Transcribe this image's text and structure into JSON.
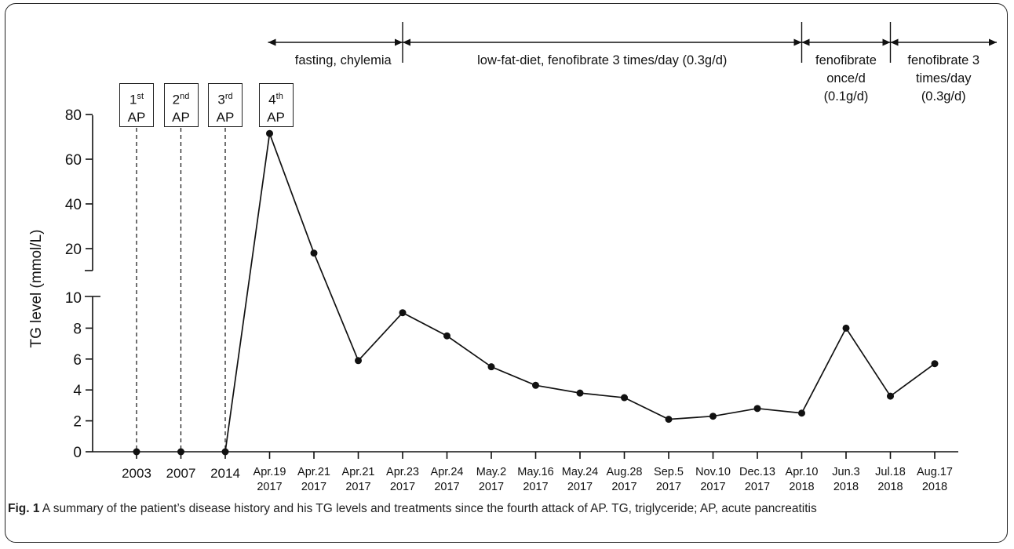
{
  "chart_data": {
    "type": "line",
    "ylabel": "TG level (mmol/L)",
    "y_ticks_lower": [
      0,
      2,
      4,
      6,
      8,
      10
    ],
    "y_ticks_upper": [
      20,
      40,
      60,
      80
    ],
    "axis_break": "between 10 and 20",
    "categories": [
      [
        "2003",
        ""
      ],
      [
        "2007",
        ""
      ],
      [
        "2014",
        ""
      ],
      [
        "Apr.19",
        "2017"
      ],
      [
        "Apr.21",
        "2017"
      ],
      [
        "Apr.21",
        "2017"
      ],
      [
        "Apr.23",
        "2017"
      ],
      [
        "Apr.24",
        "2017"
      ],
      [
        "May.2",
        "2017"
      ],
      [
        "May.16",
        "2017"
      ],
      [
        "May.24",
        "2017"
      ],
      [
        "Aug.28",
        "2017"
      ],
      [
        "Sep.5",
        "2017"
      ],
      [
        "Nov.10",
        "2017"
      ],
      [
        "Dec.13",
        "2017"
      ],
      [
        "Apr.10",
        "2018"
      ],
      [
        "Jun.3",
        "2018"
      ],
      [
        "Jul.18",
        "2018"
      ],
      [
        "Aug.17",
        "2018"
      ]
    ],
    "values": [
      0,
      0,
      0,
      71.5,
      18,
      5.9,
      9.0,
      7.5,
      5.5,
      4.3,
      3.8,
      3.5,
      2.1,
      2.3,
      2.8,
      2.5,
      8.0,
      3.6,
      5.7
    ],
    "attacks": [
      {
        "sup": "st",
        "num": "1",
        "label": "AP"
      },
      {
        "sup": "nd",
        "num": "2",
        "label": "AP"
      },
      {
        "sup": "rd",
        "num": "3",
        "label": "AP"
      },
      {
        "sup": "th",
        "num": "4",
        "label": "AP"
      }
    ],
    "treatments": [
      {
        "lines": [
          "fasting,  chylemia"
        ]
      },
      {
        "lines": [
          "low-fat-diet, fenofibrate 3 times/day (0.3g/d)"
        ]
      },
      {
        "lines": [
          "fenofibrate",
          "once/d",
          "(0.1g/d)"
        ]
      },
      {
        "lines": [
          "fenofibrate 3",
          "times/day",
          "(0.3g/d)"
        ]
      }
    ],
    "legend": "none",
    "grid": false
  },
  "caption": {
    "label": "Fig. 1",
    "text": " A summary of the patient’s disease history and his TG levels and treatments since the fourth attack of AP. TG, triglyceride; AP, acute pancreatitis"
  }
}
